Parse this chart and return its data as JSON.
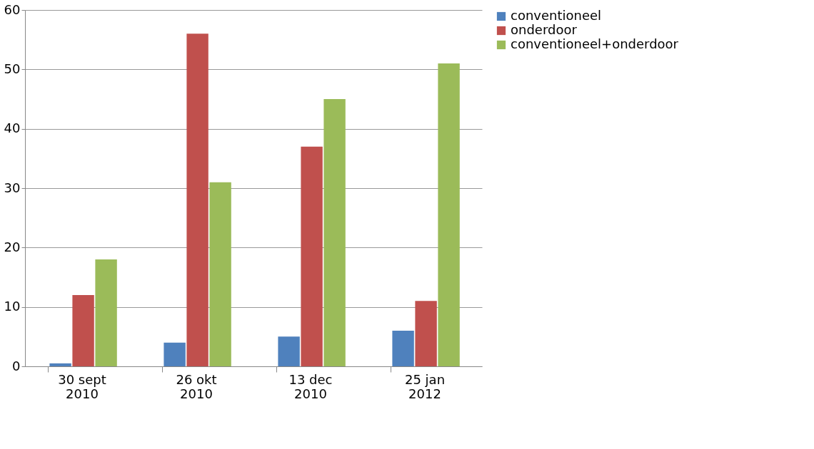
{
  "chart_data": {
    "type": "bar",
    "categories": [
      "30 sept 2010",
      "26 okt 2010",
      "13 dec 2010",
      "25 jan 2012"
    ],
    "series": [
      {
        "name": "conventioneel",
        "color": "#4f81bd",
        "values": [
          0.5,
          4,
          5,
          6
        ]
      },
      {
        "name": "onderdoor",
        "color": "#c0504d",
        "values": [
          12,
          56,
          37,
          11
        ]
      },
      {
        "name": "conventioneel+onderdoor",
        "color": "#9bbb59",
        "values": [
          18,
          31,
          45,
          51
        ]
      }
    ],
    "ylim": [
      0,
      60
    ],
    "yticks": [
      0,
      10,
      20,
      30,
      40,
      50,
      60
    ],
    "grid": "y",
    "legend": "right"
  }
}
